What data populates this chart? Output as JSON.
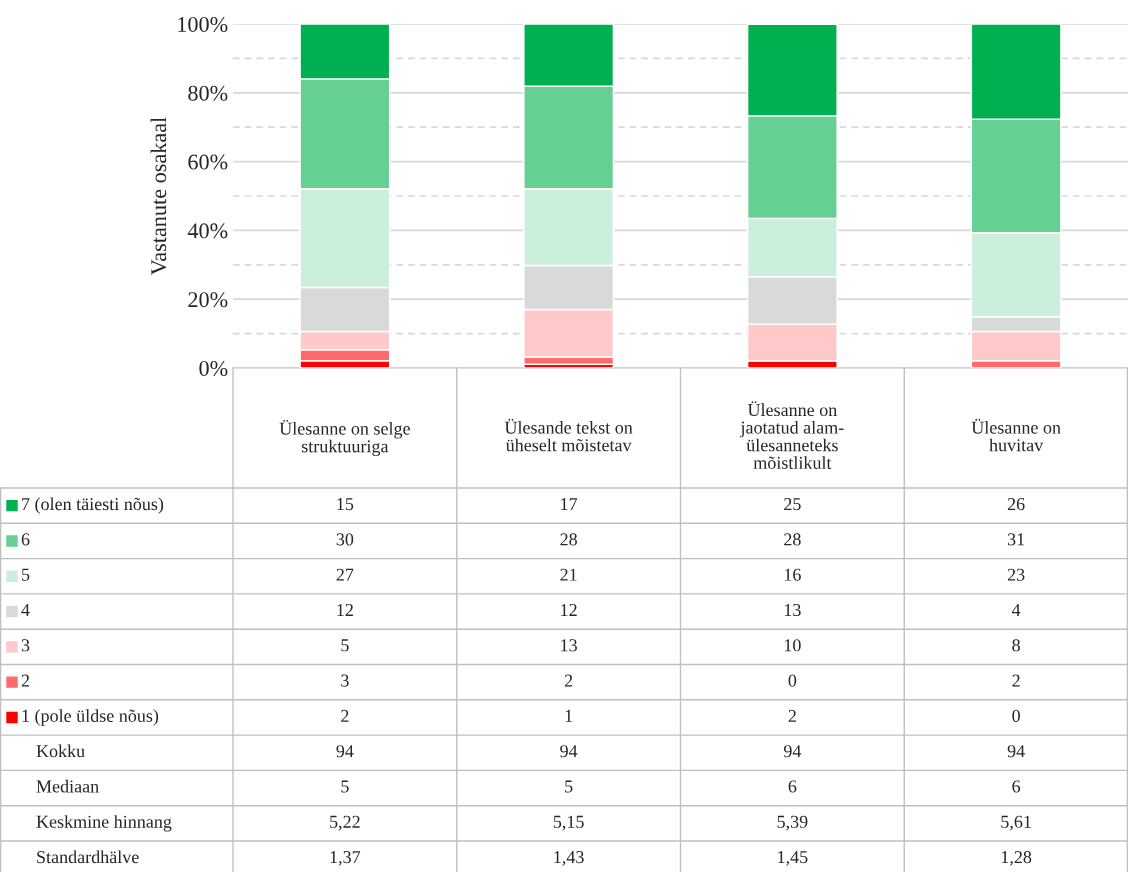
{
  "chart_data": {
    "type": "bar",
    "stacked": true,
    "ylabel": "Vastanute osakaal",
    "categories": [
      "Ülesanne on selge\nstruktuuriga",
      "Ülesande tekst on\nüheselt mõistetav",
      "Ülesanne on\njaotatud alam-\nülesanneteks\nmõistlikult",
      "Ülesanne on\nhuvitav"
    ],
    "series": [
      {
        "name": "1 (pole üldse nõus)",
        "color": "#ff0000",
        "values": [
          2.1,
          1.1,
          2.1,
          0.0
        ]
      },
      {
        "name": "2",
        "color": "#ff6b6b",
        "values": [
          3.2,
          2.1,
          0.0,
          2.1
        ]
      },
      {
        "name": "3",
        "color": "#ffc9c9",
        "values": [
          5.3,
          13.8,
          10.6,
          8.5
        ]
      },
      {
        "name": "4",
        "color": "#d9d9d9",
        "values": [
          12.8,
          12.8,
          13.8,
          4.3
        ]
      },
      {
        "name": "5",
        "color": "#ccefdc",
        "values": [
          28.7,
          22.3,
          17.0,
          24.4
        ]
      },
      {
        "name": "6",
        "color": "#66cf94",
        "values": [
          31.9,
          29.8,
          29.8,
          33.0
        ]
      },
      {
        "name": "7 (olen täiesti nõus)",
        "color": "#00b050",
        "values": [
          16.0,
          18.1,
          26.6,
          27.7
        ]
      }
    ],
    "ylim": [
      0,
      100
    ],
    "yticks": [
      {
        "value": 0,
        "label": "0%"
      },
      {
        "value": 10,
        "label": null
      },
      {
        "value": 20,
        "label": "20%"
      },
      {
        "value": 30,
        "label": null
      },
      {
        "value": 40,
        "label": "40%"
      },
      {
        "value": 50,
        "label": null
      },
      {
        "value": 60,
        "label": "60%"
      },
      {
        "value": 70,
        "label": null
      },
      {
        "value": 80,
        "label": "80%"
      },
      {
        "value": 90,
        "label": null
      },
      {
        "value": 100,
        "label": "100%"
      }
    ],
    "grid": "y",
    "legend": "bottom",
    "tick_labels": "y",
    "annotations": [
      "15",
      "17",
      "25",
      "26",
      "30",
      "28",
      "28",
      "31",
      "27",
      "21",
      "16",
      "23",
      "12",
      "12",
      "13",
      "4",
      "5",
      "13",
      "10",
      "8",
      "3",
      "2",
      "0",
      "2",
      "2",
      "1",
      "2",
      "0",
      "Kokku",
      "94",
      "94",
      "94",
      "94",
      "Mediaan",
      "5",
      "5",
      "6",
      "6",
      "Keskmine hinnang",
      "5,22",
      "5,15",
      "5,39",
      "5,61",
      "Standardhälve",
      "1,37",
      "1,43",
      "1,45",
      "1,28"
    ]
  }
}
